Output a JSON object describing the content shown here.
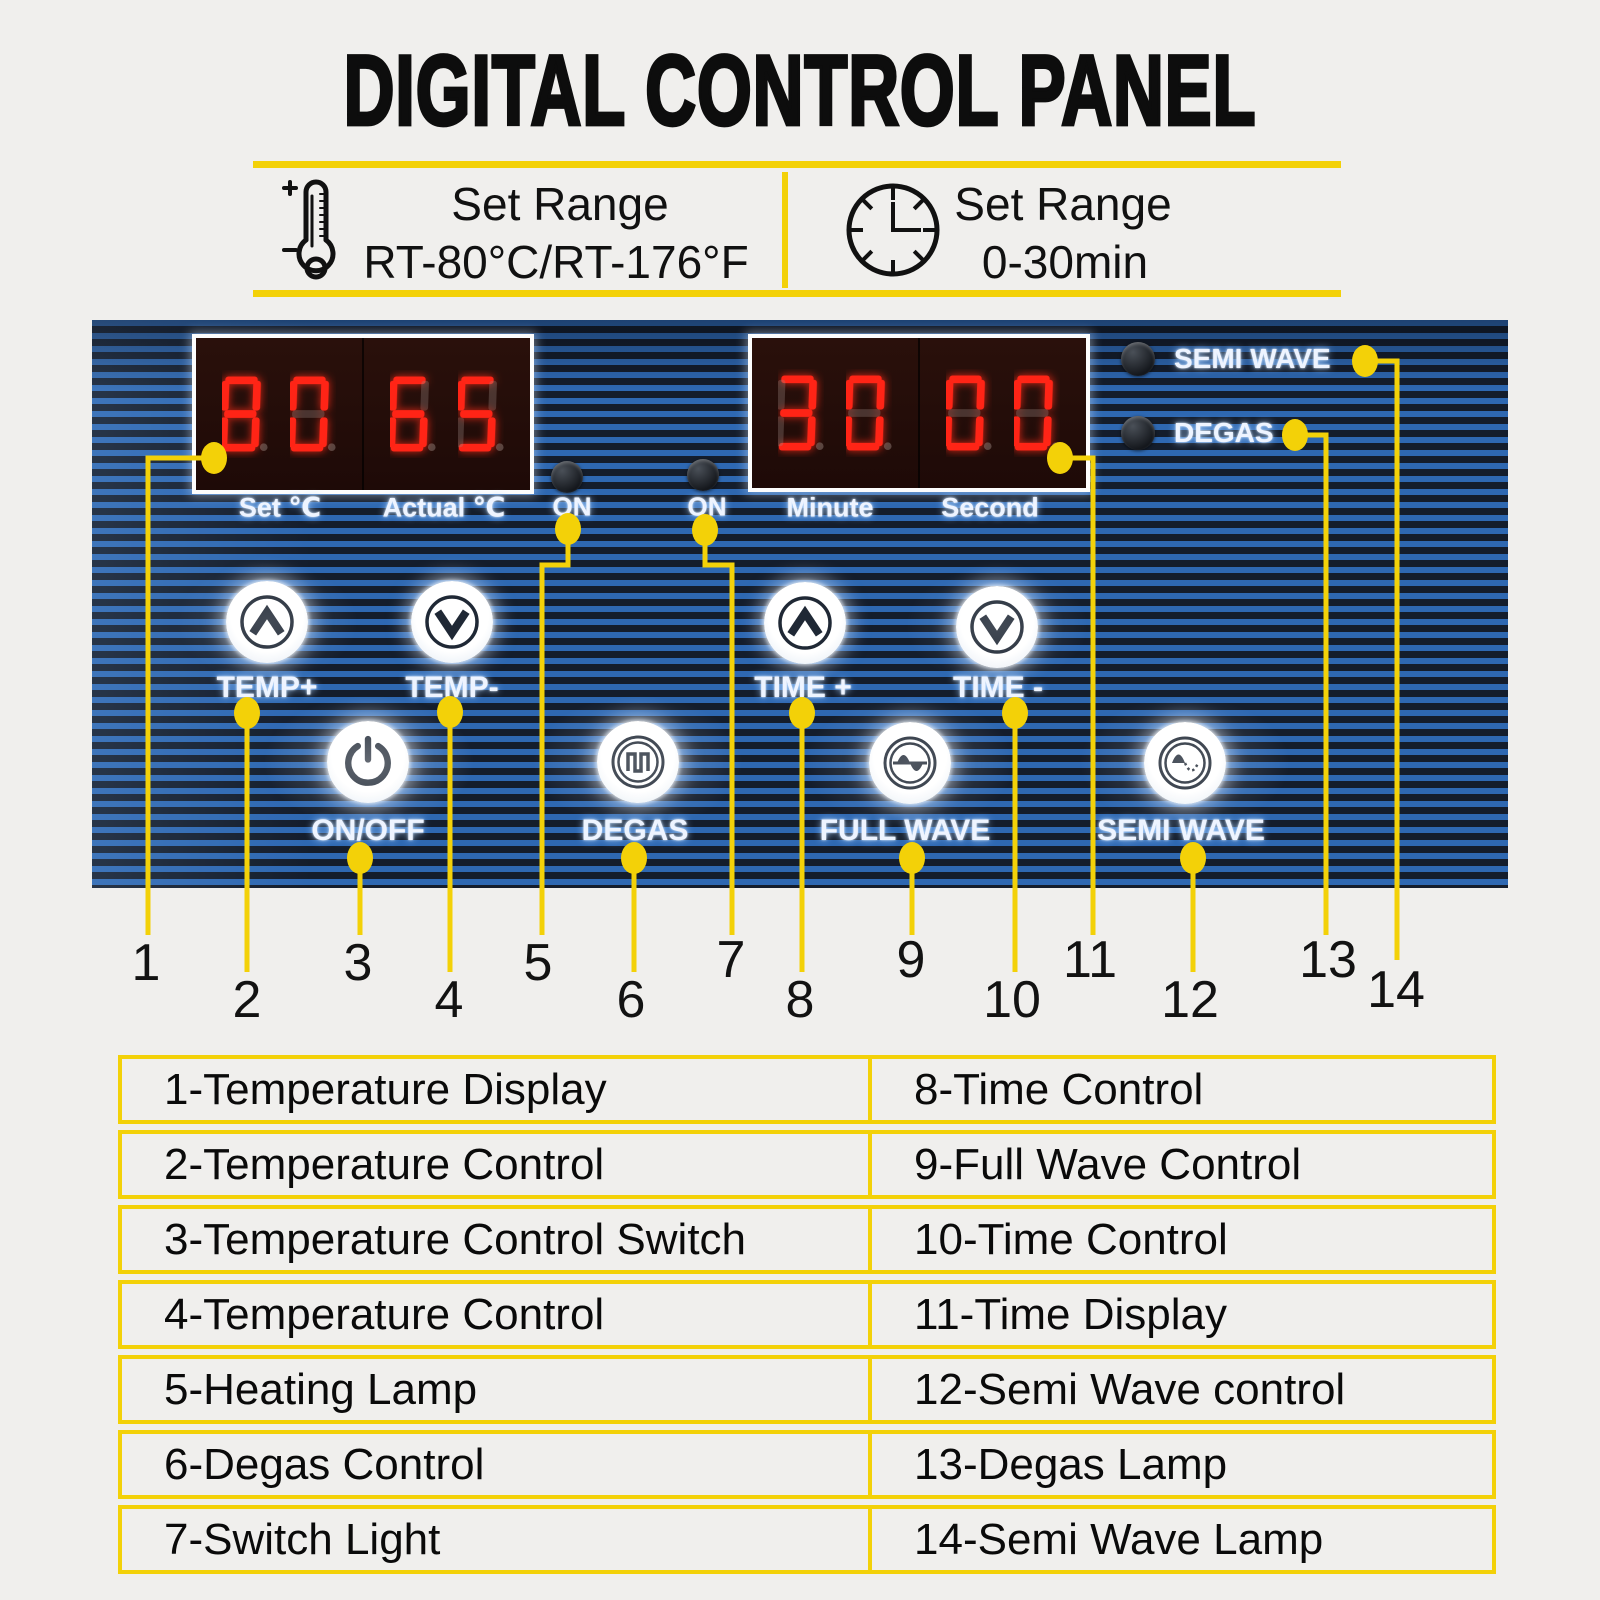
{
  "title": "DIGITAL CONTROL PANEL",
  "header": {
    "temp_range": {
      "line1": "Set Range",
      "line2": "RT-80°C/RT-176°F"
    },
    "time_range": {
      "line1": "Set Range",
      "line2": "0-30min"
    }
  },
  "panel": {
    "temp_display": {
      "set_value": "80",
      "actual_value": "65",
      "set_label": "Set ℃",
      "actual_label": "Actual ℃"
    },
    "heating_indicator_label": "ON",
    "switch_indicator_label": "ON",
    "time_display": {
      "minute_value": "30",
      "second_value": "00",
      "minute_label": "Minute",
      "second_label": "Second"
    },
    "semi_wave_indicator_label": "SEMI WAVE",
    "degas_indicator_label": "DEGAS",
    "buttons": {
      "temp_up": "TEMP+",
      "temp_down": "TEMP-",
      "time_up": "TIME +",
      "time_down": "TIME -",
      "power": "ON/OFF",
      "degas": "DEGAS",
      "full_wave": "FULL WAVE",
      "semi_wave": "SEMI WAVE"
    }
  },
  "callouts": [
    "1",
    "2",
    "3",
    "4",
    "5",
    "6",
    "7",
    "8",
    "9",
    "10",
    "11",
    "12",
    "13",
    "14"
  ],
  "legend": {
    "rows": [
      {
        "left": "1-Temperature Display",
        "right": "8-Time Control"
      },
      {
        "left": "2-Temperature Control",
        "right": "9-Full Wave Control"
      },
      {
        "left": "3-Temperature Control Switch",
        "right": "10-Time Control"
      },
      {
        "left": "4-Temperature Control",
        "right": "11-Time Display"
      },
      {
        "left": "5-Heating Lamp",
        "right": "12-Semi Wave control"
      },
      {
        "left": "6-Degas Control",
        "right": "13-Degas Lamp"
      },
      {
        "left": "7-Switch Light",
        "right": "14-Semi Wave Lamp"
      }
    ]
  },
  "colors": {
    "accent_yellow": "#f3d108",
    "led_red": "#ff2416",
    "stripe_blue": "#2e68b2",
    "stripe_dark": "#141d2c",
    "background": "#f0efed"
  }
}
